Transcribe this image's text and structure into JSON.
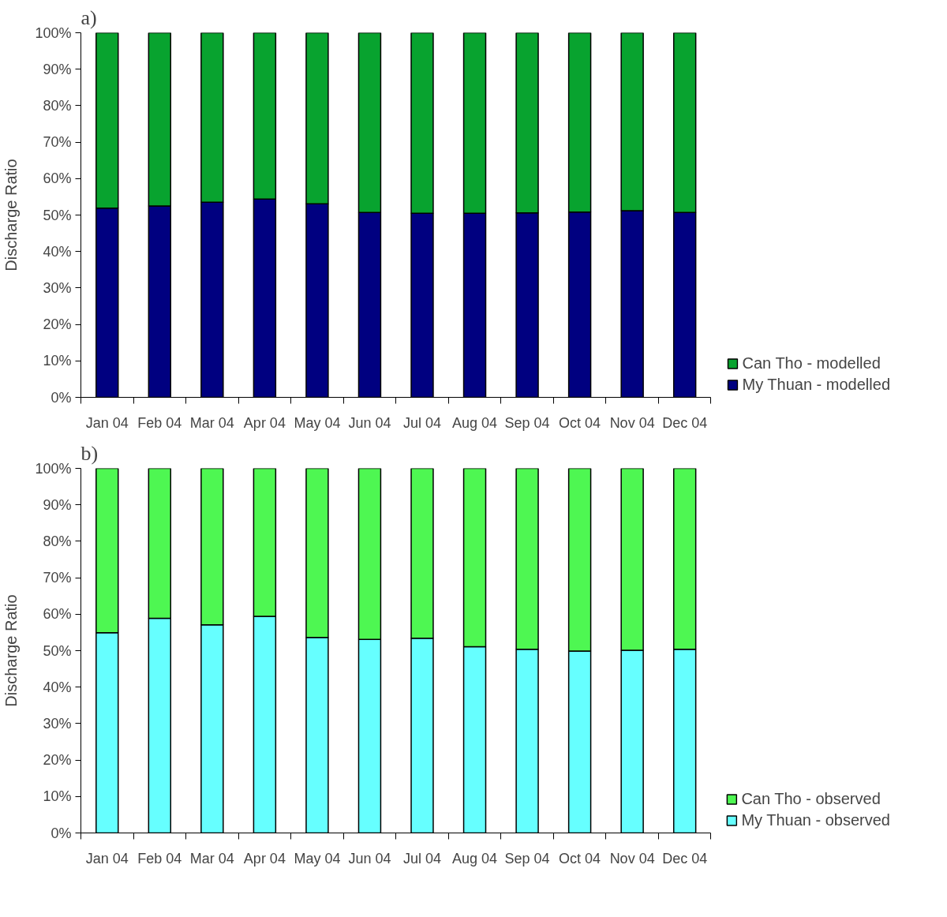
{
  "chart_data": [
    {
      "type": "bar",
      "title": "a)",
      "ylabel": "Discharge Ratio",
      "stacked": true,
      "legend": "bottom right",
      "categories": [
        "Jan 04",
        "Feb 04",
        "Mar 04",
        "Apr 04",
        "May 04",
        "Jun 04",
        "Jul 04",
        "Aug 04",
        "Sep 04",
        "Oct 04",
        "Nov 04",
        "Dec 04"
      ],
      "series": [
        {
          "name": "My Thuan - modelled",
          "color": "#000080",
          "values": [
            51.9,
            52.5,
            53.5,
            54.4,
            53.1,
            50.7,
            50.5,
            50.5,
            50.6,
            50.8,
            51.2,
            50.7
          ]
        },
        {
          "name": "Can Tho - modelled",
          "color": "#08a32f",
          "values": [
            48.1,
            47.5,
            46.5,
            45.6,
            46.9,
            49.3,
            49.5,
            49.5,
            49.4,
            49.2,
            48.8,
            49.3
          ]
        }
      ],
      "ylim": [
        0,
        100
      ],
      "yticks": [
        {
          "value": 0,
          "label": "0%"
        },
        {
          "value": 10,
          "label": "10%"
        },
        {
          "value": 20,
          "label": "20%"
        },
        {
          "value": 30,
          "label": "30%"
        },
        {
          "value": 40,
          "label": "40%"
        },
        {
          "value": 50,
          "label": "50%"
        },
        {
          "value": 60,
          "label": "60%"
        },
        {
          "value": 70,
          "label": "70%"
        },
        {
          "value": 80,
          "label": "80%"
        },
        {
          "value": 90,
          "label": "90%"
        },
        {
          "value": 100,
          "label": "100%"
        }
      ]
    },
    {
      "type": "bar",
      "title": "b)",
      "ylabel": "Discharge Ratio",
      "stacked": true,
      "legend": "bottom right",
      "categories": [
        "Jan 04",
        "Feb 04",
        "Mar 04",
        "Apr 04",
        "May 04",
        "Jun 04",
        "Jul 04",
        "Aug 04",
        "Sep 04",
        "Oct 04",
        "Nov 04",
        "Dec 04"
      ],
      "series": [
        {
          "name": "My Thuan - observed",
          "color": "#66ffff",
          "values": [
            54.9,
            58.9,
            57.1,
            59.4,
            53.6,
            53.1,
            53.4,
            51.1,
            50.4,
            49.9,
            50.1,
            50.4
          ]
        },
        {
          "name": "Can Tho - observed",
          "color": "#4ef752",
          "values": [
            45.1,
            41.1,
            42.9,
            40.6,
            46.4,
            46.9,
            46.6,
            48.9,
            49.6,
            50.1,
            49.9,
            49.6
          ]
        }
      ],
      "ylim": [
        0,
        100
      ],
      "yticks": [
        {
          "value": 0,
          "label": "0%"
        },
        {
          "value": 10,
          "label": "10%"
        },
        {
          "value": 20,
          "label": "20%"
        },
        {
          "value": 30,
          "label": "30%"
        },
        {
          "value": 40,
          "label": "40%"
        },
        {
          "value": 50,
          "label": "50%"
        },
        {
          "value": 60,
          "label": "60%"
        },
        {
          "value": 70,
          "label": "70%"
        },
        {
          "value": 80,
          "label": "80%"
        },
        {
          "value": 90,
          "label": "90%"
        },
        {
          "value": 100,
          "label": "100%"
        }
      ]
    }
  ]
}
